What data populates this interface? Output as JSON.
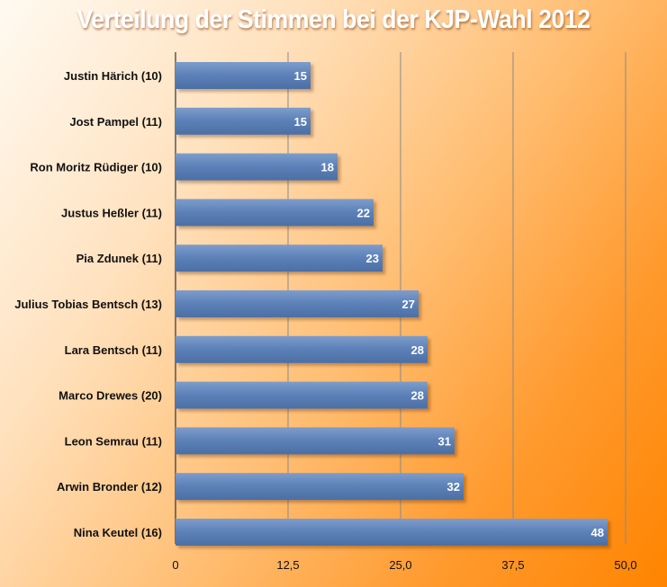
{
  "chart_data": {
    "type": "bar",
    "orientation": "horizontal",
    "title": "Verteilung der Stimmen bei der KJP-Wahl 2012",
    "categories": [
      "Justin Härich (10)",
      "Jost Pampel (11)",
      "Ron Moritz Rüdiger (10)",
      "Justus Heßler (11)",
      "Pia Zdunek (11)",
      "Julius Tobias Bentsch (13)",
      "Lara Bentsch (11)",
      "Marco Drewes (20)",
      "Leon Semrau (11)",
      "Arwin Bronder (12)",
      "Nina Keutel (16)"
    ],
    "values": [
      15,
      15,
      18,
      22,
      23,
      27,
      28,
      28,
      31,
      32,
      48
    ],
    "value_labels": [
      "15",
      "15",
      "18",
      "22",
      "23",
      "27",
      "28",
      "28",
      "31",
      "32",
      "48"
    ],
    "xlim": [
      0,
      50
    ],
    "xticks": [
      0,
      12.5,
      25,
      37.5,
      50
    ],
    "xtick_labels": [
      "0",
      "12,5",
      "25,0",
      "37,5",
      "50,0"
    ],
    "grid": true,
    "bar_color": "#5b80b7"
  }
}
